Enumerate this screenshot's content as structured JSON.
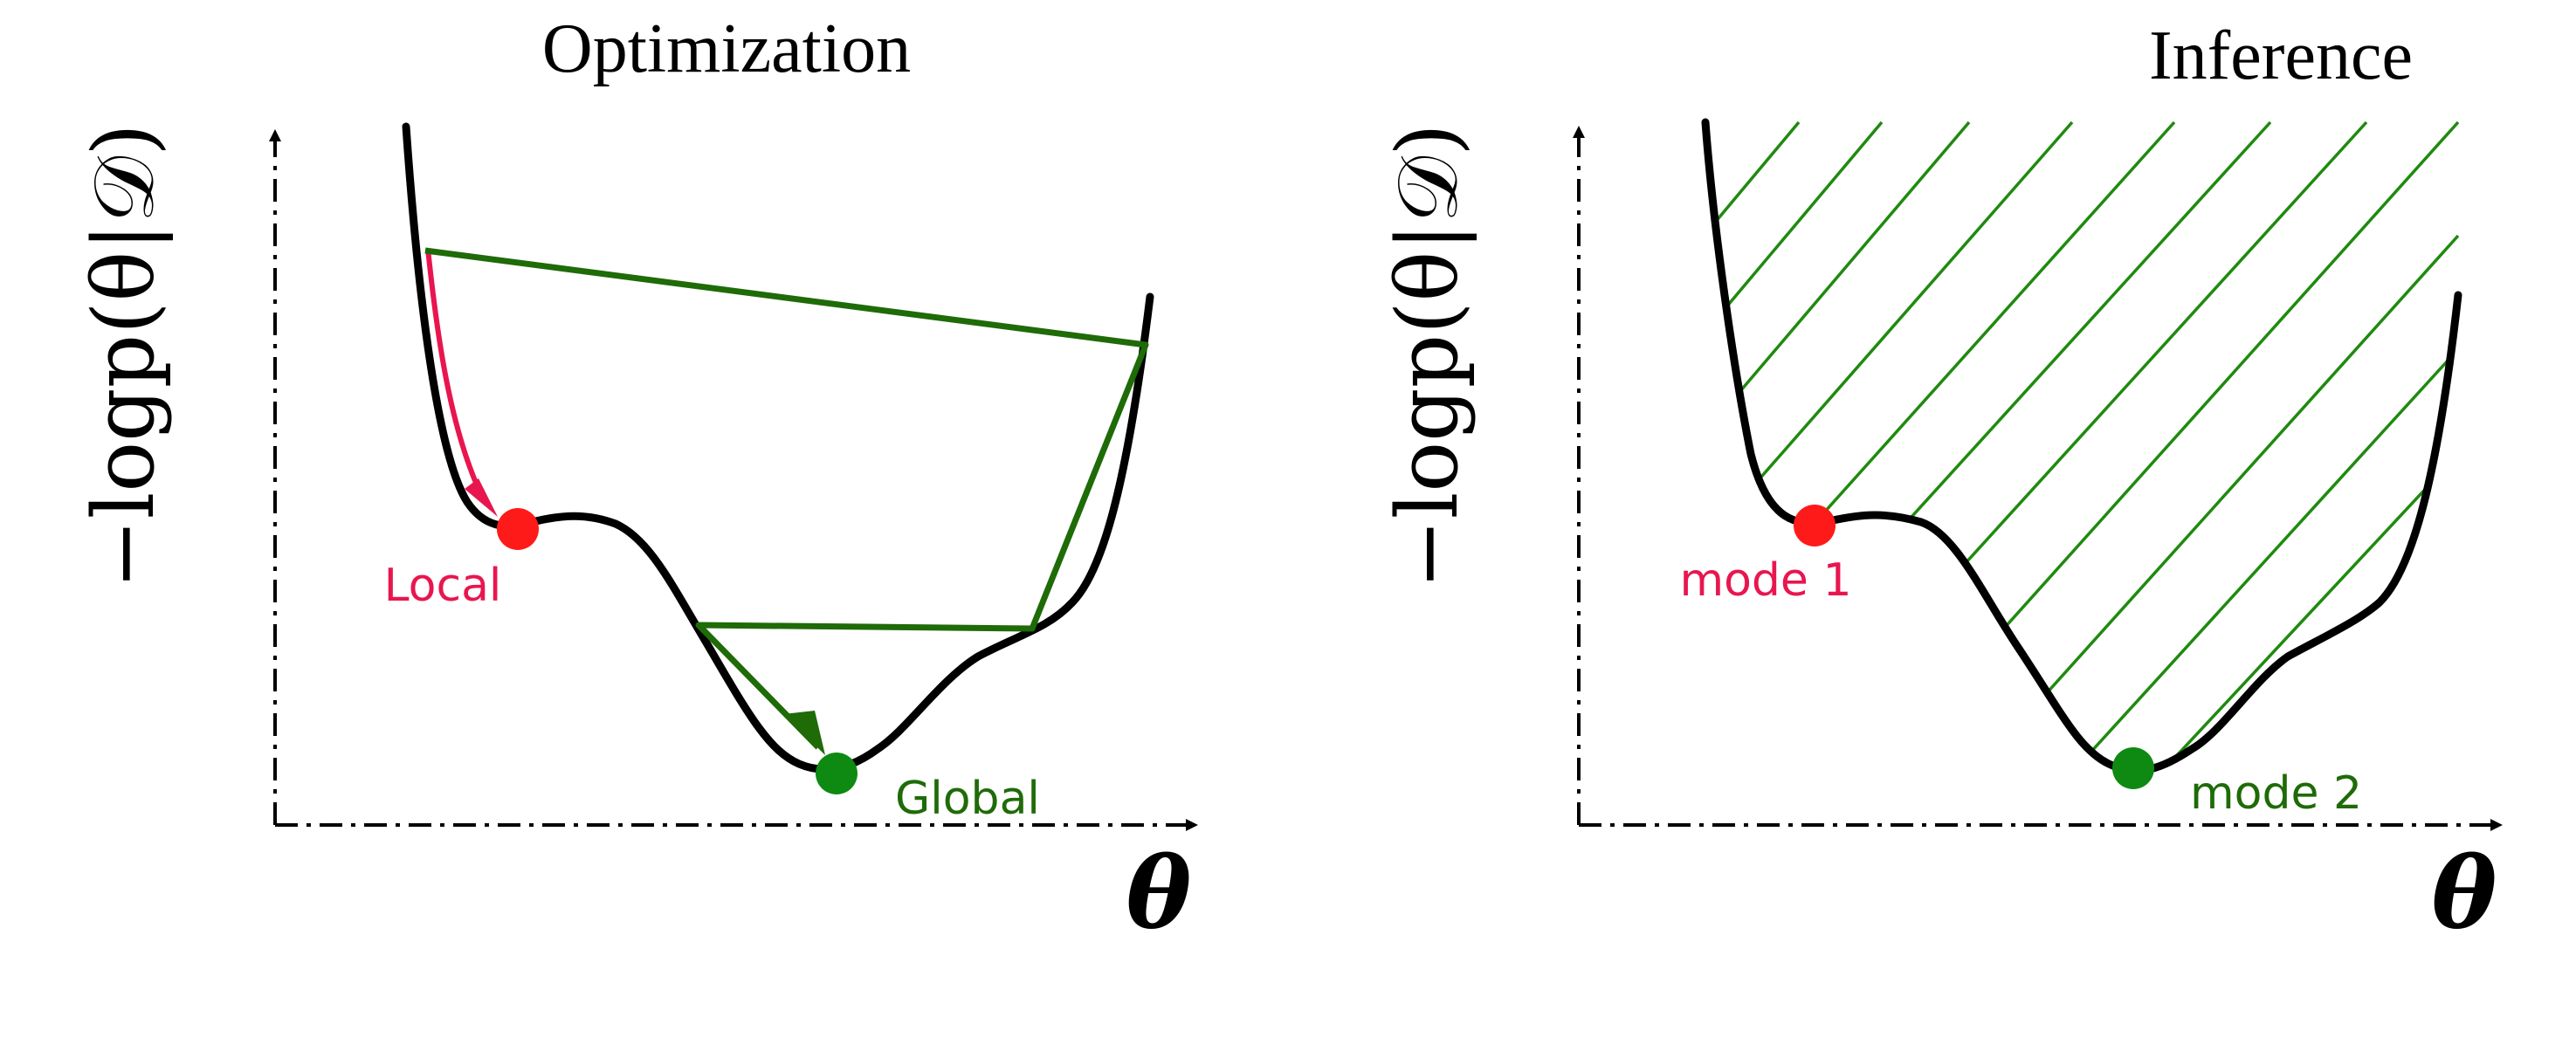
{
  "panels": {
    "optimization": {
      "title": "Optimization",
      "ylabel": "−logp(θ|𝒟)",
      "xlabel": "θ",
      "local_label": "Local",
      "global_label": "Global"
    },
    "inference": {
      "title": "Inference",
      "ylabel": "−logp(θ|𝒟)",
      "xlabel": "θ",
      "mode1_label": "mode 1",
      "mode2_label": "mode 2"
    }
  },
  "colors": {
    "curve": "#000000",
    "local_marker": "#ff1a1a",
    "local_text": "#e8164f",
    "global_marker": "#0e8a12",
    "global_text": "#1e6b08",
    "path_line": "#1e6b08",
    "hatch": "#1f8a0f",
    "gradient_arrow": "#e8164f"
  }
}
